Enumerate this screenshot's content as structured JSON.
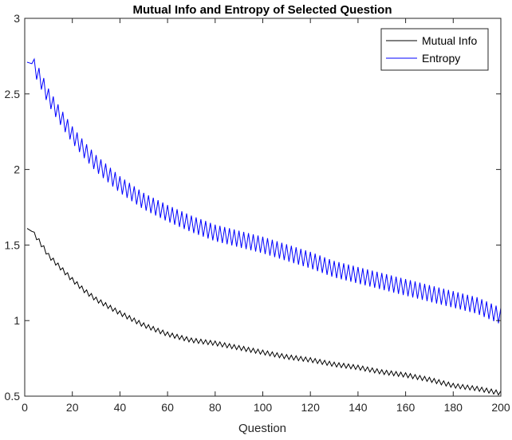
{
  "chart_data": {
    "type": "line",
    "title": "Mutual Info and Entropy of Selected Question",
    "xlabel": "Question",
    "ylabel": "",
    "xlim": [
      0,
      200
    ],
    "ylim": [
      0.5,
      3
    ],
    "x_ticks": [
      "0",
      "20",
      "40",
      "60",
      "80",
      "100",
      "120",
      "140",
      "160",
      "180",
      "200"
    ],
    "y_ticks": [
      "0.5",
      "1",
      "1.5",
      "2",
      "2.5",
      "3"
    ],
    "legend_position": "top-right",
    "grid": false,
    "series": [
      {
        "name": "Mutual Info",
        "color": "#000000",
        "x": [
          1,
          3,
          5,
          8,
          10,
          15,
          20,
          25,
          30,
          40,
          50,
          60,
          70,
          80,
          90,
          100,
          110,
          120,
          130,
          140,
          150,
          160,
          170,
          180,
          190,
          200
        ],
        "y": [
          1.61,
          1.59,
          1.55,
          1.48,
          1.43,
          1.35,
          1.27,
          1.2,
          1.14,
          1.05,
          0.97,
          0.91,
          0.87,
          0.85,
          0.82,
          0.79,
          0.76,
          0.74,
          0.71,
          0.69,
          0.66,
          0.64,
          0.61,
          0.57,
          0.55,
          0.52
        ],
        "zigzag_amplitude": 0.015
      },
      {
        "name": "Entropy",
        "color": "#0000ff",
        "x": [
          1,
          3,
          5,
          8,
          10,
          15,
          20,
          25,
          30,
          35,
          40,
          50,
          60,
          70,
          80,
          90,
          100,
          110,
          120,
          130,
          140,
          150,
          160,
          170,
          180,
          190,
          200
        ],
        "y": [
          2.71,
          2.7,
          2.65,
          2.55,
          2.48,
          2.35,
          2.23,
          2.13,
          2.04,
          1.97,
          1.9,
          1.79,
          1.71,
          1.64,
          1.58,
          1.54,
          1.5,
          1.45,
          1.4,
          1.34,
          1.3,
          1.26,
          1.22,
          1.18,
          1.14,
          1.1,
          1.03
        ],
        "zigzag_amplitude": 0.055
      }
    ]
  }
}
